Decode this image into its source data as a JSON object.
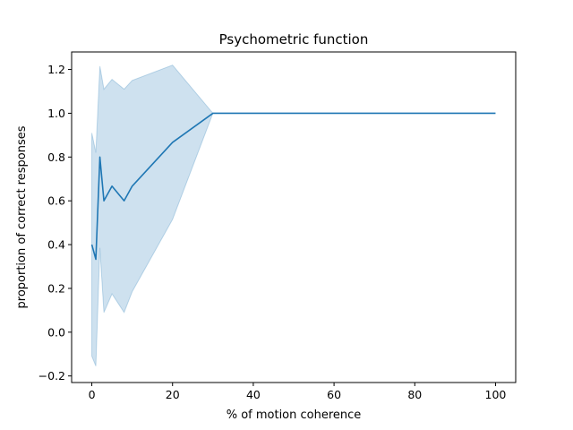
{
  "chart_data": {
    "type": "line",
    "title": "Psychometric function",
    "xlabel": "% of motion coherence",
    "ylabel": "proportion of correct responses",
    "xlim": [
      -5,
      105
    ],
    "ylim": [
      -0.23,
      1.28
    ],
    "xticks": [
      0,
      20,
      40,
      60,
      80,
      100
    ],
    "xtick_labels": [
      "0",
      "20",
      "40",
      "60",
      "80",
      "100"
    ],
    "yticks": [
      -0.2,
      0.0,
      0.2,
      0.4,
      0.6,
      0.8,
      1.0,
      1.2
    ],
    "ytick_labels": [
      "−0.2",
      "0.0",
      "0.2",
      "0.4",
      "0.6",
      "0.8",
      "1.0",
      "1.2"
    ],
    "grid": false,
    "series": [
      {
        "x": [
          0,
          1,
          2,
          3,
          5,
          8,
          10,
          20,
          30,
          100
        ],
        "y": [
          0.4,
          0.333,
          0.8,
          0.6,
          0.667,
          0.6,
          0.667,
          0.867,
          1.0,
          1.0
        ],
        "ci_lower": [
          -0.11,
          -0.155,
          0.385,
          0.09,
          0.175,
          0.09,
          0.185,
          0.515,
          1.0,
          1.0
        ],
        "ci_upper": [
          0.91,
          0.82,
          1.215,
          1.11,
          1.155,
          1.11,
          1.15,
          1.22,
          1.0,
          1.0
        ],
        "color": "#1f77b4",
        "band_color": "#1f77b4",
        "band_opacity": 0.22
      }
    ]
  }
}
